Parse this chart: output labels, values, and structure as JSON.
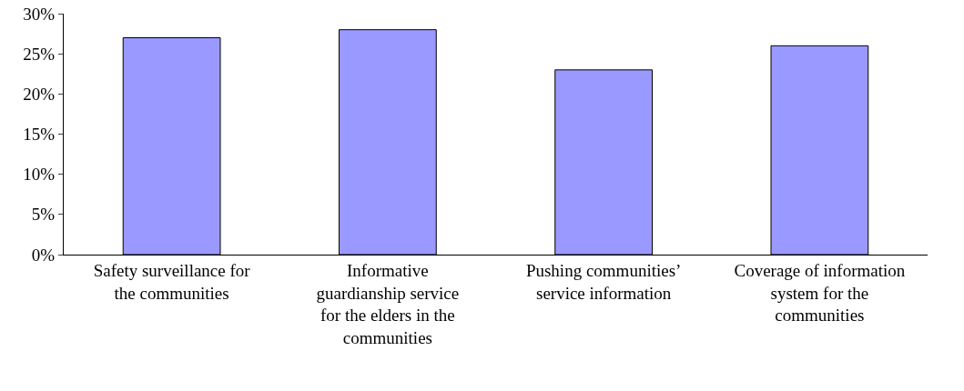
{
  "chart_data": {
    "type": "bar",
    "categories": [
      "Safety surveillance for the communities",
      "Informative guardianship service for the elders in the communities",
      "Pushing communities’ service information",
      "Coverage of information system for the communities"
    ],
    "values": [
      27,
      28,
      23,
      26
    ],
    "color": "#9999ff",
    "ylim": [
      0,
      30
    ],
    "yticks": [
      {
        "value": 0,
        "label": "0%"
      },
      {
        "value": 5,
        "label": "5%"
      },
      {
        "value": 10,
        "label": "10%"
      },
      {
        "value": 15,
        "label": "15%"
      },
      {
        "value": 20,
        "label": "20%"
      },
      {
        "value": 25,
        "label": "25%"
      },
      {
        "value": 30,
        "label": "30%"
      }
    ],
    "grid": false
  }
}
